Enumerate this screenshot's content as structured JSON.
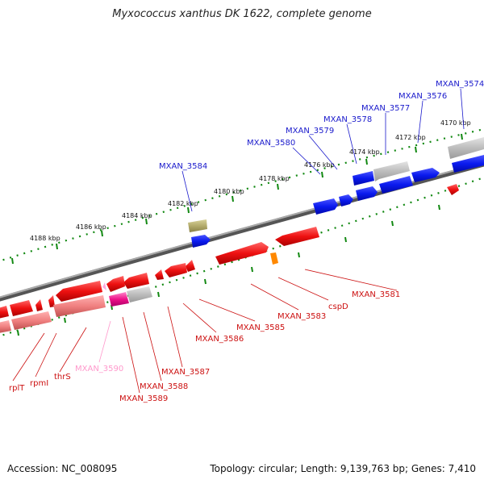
{
  "title": "Myxococcus xanthus DK 1622, complete genome",
  "footer": {
    "accession": "Accession: NC_008095",
    "summary": "Topology: circular; Length: 9,139,763 bp; Genes: 7,410"
  },
  "colors": {
    "forward": "#0a1aee",
    "reverse": "#ee1111",
    "pseudo": "#aaaaaa",
    "rna": "#ff55aa",
    "label_forward": "#1a1acc",
    "label_reverse": "#cc1111",
    "backbone": "#808080",
    "ticks": "#118811"
  },
  "ticks": [
    {
      "label": "4170 kbp"
    },
    {
      "label": "4172 kbp"
    },
    {
      "label": "4174 kbp"
    },
    {
      "label": "4176 kbp"
    },
    {
      "label": "4178 kbp"
    },
    {
      "label": "4180 kbp"
    },
    {
      "label": "4182 kbp"
    },
    {
      "label": "4184 kbp"
    },
    {
      "label": "4186 kbp"
    },
    {
      "label": "4188 kbp"
    }
  ],
  "forward_labels": [
    "MXAN_3574",
    "MXAN_3576",
    "MXAN_3577",
    "MXAN_3578",
    "MXAN_3579",
    "MXAN_3580",
    "MXAN_3584"
  ],
  "reverse_labels": [
    "MXAN_3581",
    "cspD",
    "MXAN_3583",
    "MXAN_3585",
    "MXAN_3586",
    "MXAN_3587",
    "MXAN_3588",
    "MXAN_3589",
    "MXAN_3590",
    "thrS",
    "rpmI",
    "rplT"
  ]
}
